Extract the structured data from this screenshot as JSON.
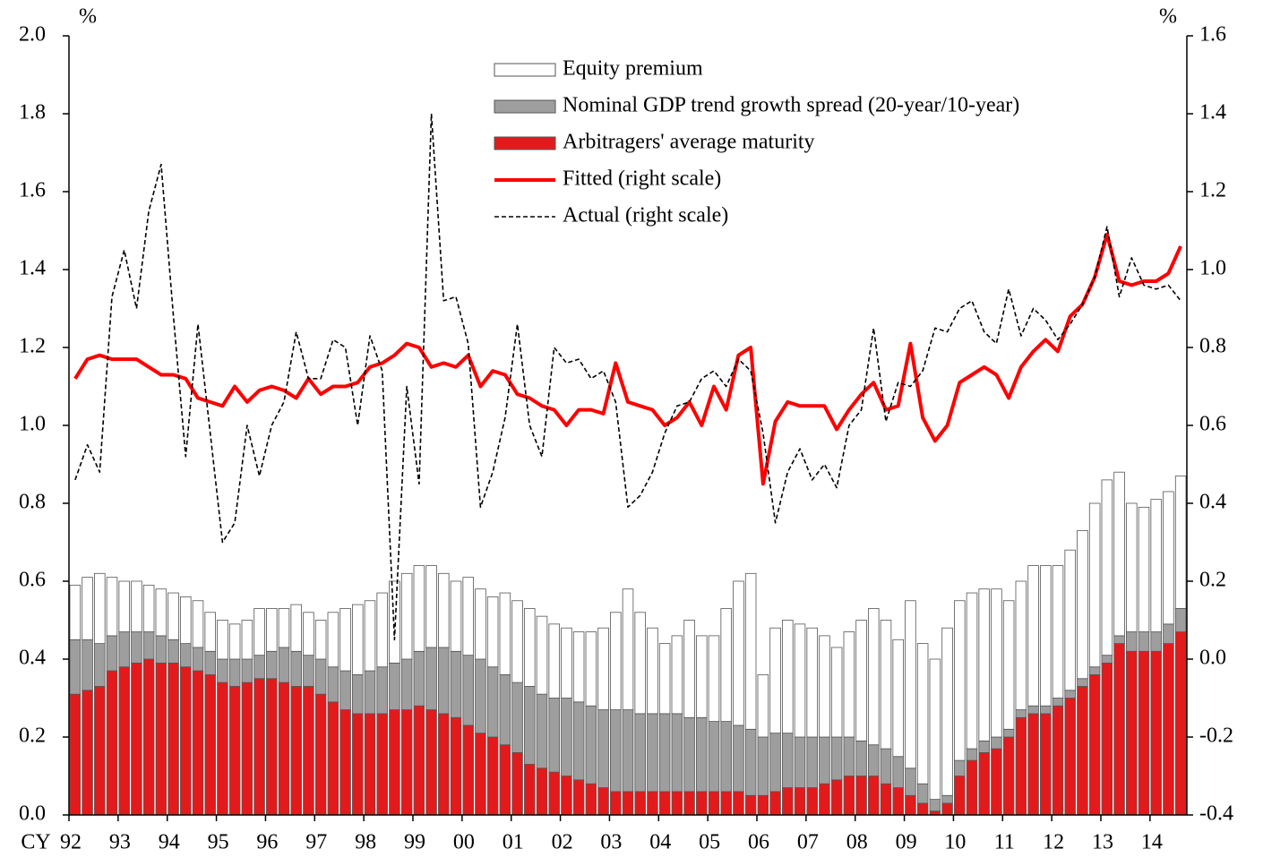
{
  "chart_data": {
    "type": "bar",
    "stacked": true,
    "x_prefix": "CY",
    "y_unit": "%",
    "y2_unit": "%",
    "categories": [
      "92",
      null,
      null,
      null,
      "93",
      null,
      null,
      null,
      "94",
      null,
      null,
      null,
      "95",
      null,
      null,
      null,
      "96",
      null,
      null,
      null,
      "97",
      null,
      null,
      null,
      "98",
      null,
      null,
      null,
      "99",
      null,
      null,
      null,
      "00",
      null,
      null,
      null,
      "01",
      null,
      null,
      null,
      "02",
      null,
      null,
      null,
      "03",
      null,
      null,
      null,
      "04",
      null,
      null,
      null,
      "05",
      null,
      null,
      null,
      "06",
      null,
      null,
      null,
      "07",
      null,
      null,
      null,
      "08",
      null,
      null,
      null,
      "09",
      null,
      null,
      null,
      "10",
      null,
      null,
      null,
      "11",
      null,
      null,
      null,
      "12",
      null,
      null,
      null,
      "13",
      null,
      null,
      null,
      "14",
      null,
      null
    ],
    "ylim": [
      0,
      2
    ],
    "yticks": [
      {
        "value": 0,
        "label": "0.0"
      },
      0.2,
      0.4,
      0.6,
      0.8,
      {
        "value": 1,
        "label": "1.0"
      },
      1.2,
      1.4,
      1.6,
      1.8,
      {
        "value": 2,
        "label": "2.0"
      }
    ],
    "y2lim": [
      -0.4,
      1.6
    ],
    "y2ticks": [
      -0.4,
      -0.2,
      {
        "value": 0,
        "label": "0.0"
      },
      0.2,
      0.4,
      0.6,
      0.8,
      {
        "value": 1,
        "label": "1.0"
      },
      1.2,
      1.4,
      1.6
    ],
    "series": [
      {
        "name": "Arbitragers' average maturity",
        "type": "bar",
        "color": "#e31a1c",
        "values": [
          0.31,
          0.32,
          0.33,
          0.37,
          0.38,
          0.39,
          0.4,
          0.39,
          0.39,
          0.38,
          0.37,
          0.36,
          0.34,
          0.33,
          0.34,
          0.35,
          0.35,
          0.34,
          0.33,
          0.33,
          0.31,
          0.29,
          0.27,
          0.26,
          0.26,
          0.26,
          0.27,
          0.27,
          0.28,
          0.27,
          0.26,
          0.25,
          0.23,
          0.21,
          0.2,
          0.18,
          0.16,
          0.13,
          0.12,
          0.11,
          0.1,
          0.09,
          0.08,
          0.07,
          0.06,
          0.06,
          0.06,
          0.06,
          0.06,
          0.06,
          0.06,
          0.06,
          0.06,
          0.06,
          0.06,
          0.05,
          0.05,
          0.06,
          0.07,
          0.07,
          0.07,
          0.08,
          0.09,
          0.1,
          0.1,
          0.1,
          0.08,
          0.07,
          0.05,
          0.03,
          0.01,
          0.03,
          0.1,
          0.14,
          0.16,
          0.17,
          0.2,
          0.25,
          0.26,
          0.26,
          0.28,
          0.3,
          0.33,
          0.36,
          0.39,
          0.44,
          0.42,
          0.42,
          0.42,
          0.44,
          0.47
        ]
      },
      {
        "name": "Nominal GDP trend growth spread (20-year/10-year)",
        "type": "bar",
        "color": "#9e9e9e",
        "values": [
          0.14,
          0.13,
          0.11,
          0.09,
          0.09,
          0.08,
          0.07,
          0.07,
          0.06,
          0.06,
          0.06,
          0.06,
          0.06,
          0.07,
          0.06,
          0.06,
          0.07,
          0.09,
          0.09,
          0.08,
          0.09,
          0.09,
          0.1,
          0.1,
          0.11,
          0.12,
          0.12,
          0.13,
          0.14,
          0.16,
          0.17,
          0.17,
          0.18,
          0.19,
          0.18,
          0.18,
          0.18,
          0.2,
          0.19,
          0.19,
          0.2,
          0.2,
          0.2,
          0.2,
          0.21,
          0.21,
          0.2,
          0.2,
          0.2,
          0.2,
          0.19,
          0.19,
          0.18,
          0.18,
          0.17,
          0.17,
          0.15,
          0.15,
          0.14,
          0.13,
          0.13,
          0.12,
          0.11,
          0.1,
          0.09,
          0.08,
          0.09,
          0.08,
          0.07,
          0.05,
          0.03,
          0.02,
          0.04,
          0.03,
          0.03,
          0.03,
          0.02,
          0.02,
          0.02,
          0.02,
          0.02,
          0.02,
          0.02,
          0.02,
          0.02,
          0.02,
          0.05,
          0.05,
          0.05,
          0.05,
          0.06
        ]
      },
      {
        "name": "Equity premium",
        "type": "bar",
        "color": "#ffffff",
        "values": [
          0.14,
          0.16,
          0.18,
          0.15,
          0.13,
          0.13,
          0.12,
          0.12,
          0.12,
          0.12,
          0.12,
          0.1,
          0.1,
          0.09,
          0.1,
          0.12,
          0.11,
          0.1,
          0.12,
          0.11,
          0.1,
          0.14,
          0.16,
          0.18,
          0.18,
          0.19,
          0.21,
          0.22,
          0.22,
          0.21,
          0.19,
          0.18,
          0.2,
          0.18,
          0.18,
          0.21,
          0.21,
          0.2,
          0.2,
          0.19,
          0.18,
          0.18,
          0.19,
          0.21,
          0.25,
          0.31,
          0.26,
          0.22,
          0.18,
          0.2,
          0.25,
          0.21,
          0.22,
          0.29,
          0.37,
          0.4,
          0.16,
          0.27,
          0.29,
          0.29,
          0.28,
          0.26,
          0.23,
          0.27,
          0.31,
          0.35,
          0.33,
          0.3,
          0.43,
          0.36,
          0.36,
          0.43,
          0.41,
          0.4,
          0.39,
          0.38,
          0.33,
          0.33,
          0.36,
          0.36,
          0.34,
          0.36,
          0.38,
          0.42,
          0.45,
          0.42,
          0.33,
          0.32,
          0.34,
          0.34,
          0.34
        ]
      },
      {
        "name": "Fitted (right scale)",
        "type": "line",
        "axis": "y2",
        "color": "#ff0000",
        "style": "solid",
        "values": [
          0.72,
          0.77,
          0.78,
          0.77,
          0.77,
          0.77,
          0.75,
          0.73,
          0.73,
          0.72,
          0.67,
          0.66,
          0.65,
          0.7,
          0.66,
          0.69,
          0.7,
          0.69,
          0.67,
          0.72,
          0.68,
          0.7,
          0.7,
          0.71,
          0.75,
          0.76,
          0.78,
          0.81,
          0.8,
          0.75,
          0.76,
          0.75,
          0.78,
          0.7,
          0.74,
          0.73,
          0.68,
          0.67,
          0.65,
          0.64,
          0.6,
          0.64,
          0.64,
          0.63,
          0.76,
          0.66,
          0.65,
          0.64,
          0.6,
          0.62,
          0.66,
          0.6,
          0.7,
          0.64,
          0.78,
          0.8,
          0.45,
          0.61,
          0.66,
          0.65,
          0.65,
          0.65,
          0.59,
          0.64,
          0.68,
          0.71,
          0.64,
          0.65,
          0.81,
          0.62,
          0.56,
          0.6,
          0.71,
          0.73,
          0.75,
          0.73,
          0.67,
          0.75,
          0.79,
          0.82,
          0.79,
          0.88,
          0.91,
          0.98,
          1.09,
          0.97,
          0.96,
          0.97,
          0.97,
          0.99,
          1.06
        ]
      },
      {
        "name": "Actual (right scale)",
        "type": "line",
        "axis": "y2",
        "color": "#000000",
        "style": "dashed",
        "values": [
          0.46,
          0.55,
          0.48,
          0.93,
          1.05,
          0.9,
          1.15,
          1.27,
          0.88,
          0.52,
          0.86,
          0.58,
          0.3,
          0.35,
          0.6,
          0.47,
          0.6,
          0.66,
          0.84,
          0.72,
          0.72,
          0.82,
          0.8,
          0.6,
          0.83,
          0.74,
          0.05,
          0.7,
          0.45,
          1.4,
          0.92,
          0.93,
          0.81,
          0.39,
          0.48,
          0.62,
          0.86,
          0.6,
          0.52,
          0.8,
          0.76,
          0.77,
          0.72,
          0.74,
          0.66,
          0.39,
          0.42,
          0.48,
          0.58,
          0.65,
          0.66,
          0.72,
          0.74,
          0.7,
          0.77,
          0.74,
          0.58,
          0.35,
          0.48,
          0.54,
          0.46,
          0.5,
          0.44,
          0.6,
          0.64,
          0.85,
          0.61,
          0.71,
          0.7,
          0.74,
          0.85,
          0.84,
          0.9,
          0.92,
          0.84,
          0.81,
          0.95,
          0.83,
          0.9,
          0.87,
          0.82,
          0.86,
          0.91,
          0.98,
          1.11,
          0.93,
          1.03,
          0.96,
          0.95,
          0.96,
          0.92
        ]
      }
    ],
    "legend_order": [
      2,
      1,
      0,
      3,
      4
    ]
  }
}
